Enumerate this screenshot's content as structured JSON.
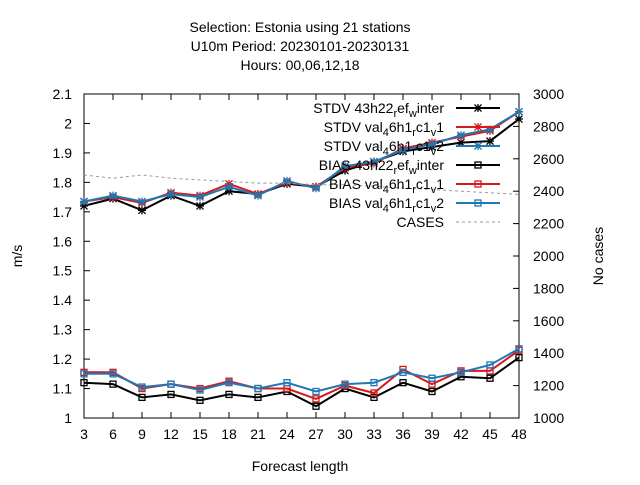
{
  "chart_data": {
    "type": "line",
    "title_lines": [
      "Selection: Estonia using     21 stations",
      "U10m   Period: 20230101-20230131",
      "Hours:  00,06,12,18"
    ],
    "xlabel": "Forecast length",
    "ylabel": "m/s",
    "y2label": "No cases",
    "x": [
      3,
      6,
      9,
      12,
      15,
      18,
      21,
      24,
      27,
      30,
      33,
      36,
      39,
      42,
      45,
      48
    ],
    "xlim": [
      3,
      48
    ],
    "ylim": [
      1.0,
      2.1
    ],
    "y2lim": [
      1000,
      3000
    ],
    "yticks": [
      "1",
      "1.1",
      "1.2",
      "1.3",
      "1.4",
      "1.5",
      "1.6",
      "1.7",
      "1.8",
      "1.9",
      "2",
      "2.1"
    ],
    "y2ticks": [
      "1000",
      "1200",
      "1400",
      "1600",
      "1800",
      "2000",
      "2200",
      "2400",
      "2600",
      "2800",
      "3000"
    ],
    "grid": false,
    "legend_position": "top-right",
    "series": [
      {
        "name": "STDV 43h22_ref_winter",
        "legend_label": "STDV 43h22",
        "legend_sub": "r",
        "legend_mid": "ef",
        "legend_sub2": "w",
        "legend_end": "inter",
        "color": "#000000",
        "marker": "star",
        "axis": "y",
        "values": [
          1.72,
          1.745,
          1.705,
          1.755,
          1.72,
          1.77,
          1.76,
          1.795,
          1.785,
          1.84,
          1.87,
          1.905,
          1.92,
          1.935,
          1.94,
          2.015
        ]
      },
      {
        "name": "STDV val_46h1_rc1_v1",
        "legend_label": "STDV val",
        "legend_sub": "4",
        "legend_mid": "6h1",
        "legend_sub2": "r",
        "legend_end": "c1",
        "legend_sub3": "v",
        "legend_end2": "1",
        "color": "#d7191c",
        "marker": "star",
        "axis": "y",
        "values": [
          1.735,
          1.75,
          1.73,
          1.765,
          1.755,
          1.795,
          1.76,
          1.8,
          1.785,
          1.85,
          1.865,
          1.915,
          1.935,
          1.955,
          1.975,
          2.04
        ]
      },
      {
        "name": "STDV val_46h1_rc1_v2",
        "legend_label": "STDV val",
        "legend_sub": "4",
        "legend_mid": "6h1",
        "legend_sub2": "r",
        "legend_end": "c1",
        "legend_sub3": "v",
        "legend_end2": "2",
        "color": "#1f78b4",
        "marker": "star",
        "axis": "y",
        "values": [
          1.735,
          1.755,
          1.735,
          1.76,
          1.75,
          1.785,
          1.755,
          1.805,
          1.78,
          1.855,
          1.87,
          1.91,
          1.93,
          1.96,
          1.98,
          2.04
        ]
      },
      {
        "name": "BIAS 43h22_ref_winter",
        "legend_label": "BIAS 43h22",
        "legend_sub": "r",
        "legend_mid": "ef",
        "legend_sub2": "w",
        "legend_end": "inter",
        "color": "#000000",
        "marker": "square",
        "axis": "y",
        "values": [
          1.12,
          1.115,
          1.07,
          1.08,
          1.06,
          1.08,
          1.07,
          1.09,
          1.04,
          1.1,
          1.07,
          1.12,
          1.09,
          1.14,
          1.135,
          1.205
        ]
      },
      {
        "name": "BIAS val_46h1_rc1_v1",
        "legend_label": "BIAS val",
        "legend_sub": "4",
        "legend_mid": "6h1",
        "legend_sub2": "r",
        "legend_end": "c1",
        "legend_sub3": "v",
        "legend_end2": "1",
        "color": "#d7191c",
        "marker": "square",
        "axis": "y",
        "values": [
          1.155,
          1.155,
          1.1,
          1.115,
          1.1,
          1.125,
          1.1,
          1.1,
          1.065,
          1.11,
          1.085,
          1.165,
          1.115,
          1.16,
          1.16,
          1.23
        ]
      },
      {
        "name": "BIAS val_46h1_rc1_v2",
        "legend_label": "BIAS val",
        "legend_sub": "4",
        "legend_mid": "6h1",
        "legend_sub2": "r",
        "legend_end": "c1",
        "legend_sub3": "v",
        "legend_end2": "2",
        "color": "#1f78b4",
        "marker": "square",
        "axis": "y",
        "values": [
          1.15,
          1.15,
          1.105,
          1.115,
          1.095,
          1.12,
          1.1,
          1.12,
          1.09,
          1.115,
          1.12,
          1.155,
          1.135,
          1.155,
          1.18,
          1.235
        ]
      },
      {
        "name": "CASES",
        "legend_label": "CASES",
        "color": "#999999",
        "marker": "none",
        "dashed": true,
        "axis": "y2",
        "values": [
          2500,
          2480,
          2500,
          2480,
          2470,
          2460,
          2450,
          2450,
          2440,
          2440,
          2430,
          2420,
          2410,
          2400,
          2390,
          2380
        ]
      }
    ]
  }
}
